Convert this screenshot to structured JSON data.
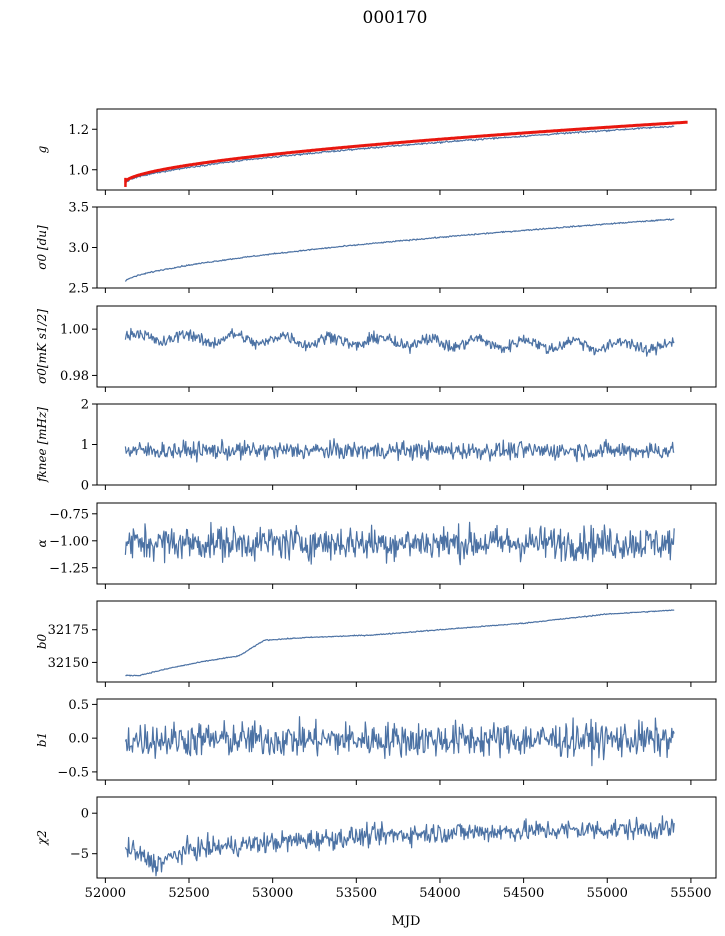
{
  "title": "000170",
  "xlabel": "MJD",
  "colors": {
    "series": "#4c72a4",
    "fit": "#e8170f",
    "axis": "#000000"
  },
  "chart_data": [
    {
      "type": "line",
      "id": "g",
      "ylabel": "g",
      "xlim": [
        51950,
        55650
      ],
      "ylim": [
        0.9,
        1.3
      ],
      "yticks": [
        1.0,
        1.2
      ],
      "yticklabels": [
        "1.0",
        "1.2"
      ],
      "series": [
        {
          "shape": "curve",
          "x0": 52120,
          "x1": 55400,
          "y0": 0.935,
          "y1": 1.215,
          "power": 0.6,
          "noise": 0.002
        },
        {
          "shape": "curve",
          "style": "fit",
          "x0": 52120,
          "x1": 55480,
          "y0": 0.94,
          "y1": 1.235,
          "power": 0.58,
          "noise": 0
        }
      ]
    },
    {
      "type": "line",
      "id": "sigma0_du",
      "ylabel": "σ0 [du]",
      "xlim": [
        51950,
        55650
      ],
      "ylim": [
        2.5,
        3.5
      ],
      "yticks": [
        2.5,
        3.0,
        3.5
      ],
      "yticklabels": [
        "2.5",
        "3.0",
        "3.5"
      ],
      "series": [
        {
          "shape": "curve",
          "x0": 52120,
          "x1": 55400,
          "y0": 2.58,
          "y1": 3.35,
          "power": 0.62,
          "noise": 0.004
        }
      ]
    },
    {
      "type": "line",
      "id": "sigma0_mk",
      "ylabel": "σ0[mK s1/2]",
      "xlim": [
        51950,
        55650
      ],
      "ylim": [
        0.975,
        1.01
      ],
      "yticks": [
        0.98,
        1.0
      ],
      "yticklabels": [
        "0.98",
        "1.00"
      ],
      "series": [
        {
          "shape": "wave",
          "x0": 52120,
          "x1": 55400,
          "y0": 0.9965,
          "y1": 0.9925,
          "amp": 0.002,
          "noise": 0.0013,
          "period": 290
        }
      ]
    },
    {
      "type": "line",
      "id": "fknee",
      "ylabel": "fknee [mHz]",
      "xlim": [
        51950,
        55650
      ],
      "ylim": [
        0,
        2
      ],
      "yticks": [
        0,
        1,
        2
      ],
      "yticklabels": [
        "0",
        "1",
        "2"
      ],
      "series": [
        {
          "shape": "noise",
          "x0": 52120,
          "x1": 55400,
          "mean": 0.85,
          "noise": 0.11,
          "min": 0.55,
          "max": 1.25
        }
      ]
    },
    {
      "type": "line",
      "id": "alpha",
      "ylabel": "α",
      "xlim": [
        51950,
        55650
      ],
      "ylim": [
        -1.4,
        -0.65
      ],
      "yticks": [
        -1.25,
        -1.0,
        -0.75
      ],
      "yticklabels": [
        "−1.25",
        "−1.00",
        "−0.75"
      ],
      "series": [
        {
          "shape": "noise",
          "x0": 52120,
          "x1": 55400,
          "mean": -1.02,
          "noise": 0.08,
          "min": -1.32,
          "max": -0.74
        }
      ]
    },
    {
      "type": "line",
      "id": "b0",
      "ylabel": "b0",
      "xlim": [
        51950,
        55650
      ],
      "ylim": [
        32135,
        32197
      ],
      "yticks": [
        32150,
        32175
      ],
      "yticklabels": [
        "32150",
        "32175"
      ],
      "series": [
        {
          "shape": "points",
          "x": [
            52120,
            52200,
            52400,
            52600,
            52800,
            52950,
            53200,
            53600,
            54000,
            54500,
            55000,
            55400
          ],
          "y": [
            32140,
            32140,
            32146,
            32151,
            32155,
            32167,
            32169,
            32171,
            32175,
            32180,
            32187,
            32190
          ],
          "noise": 0.2
        }
      ]
    },
    {
      "type": "line",
      "id": "b1",
      "ylabel": "b1",
      "xlim": [
        51950,
        55650
      ],
      "ylim": [
        -0.62,
        0.58
      ],
      "yticks": [
        -0.5,
        0.0,
        0.5
      ],
      "yticklabels": [
        "−0.5",
        "0.0",
        "0.5"
      ],
      "series": [
        {
          "shape": "noise",
          "x0": 52120,
          "x1": 55400,
          "mean": -0.02,
          "noise": 0.13,
          "min": -0.58,
          "max": 0.52
        }
      ]
    },
    {
      "type": "line",
      "id": "chi2",
      "ylabel": "χ2",
      "xlim": [
        51950,
        55650
      ],
      "ylim": [
        -8,
        2
      ],
      "yticks": [
        -5,
        0
      ],
      "yticklabels": [
        "−5",
        "0"
      ],
      "xticks": [
        52000,
        52500,
        53000,
        53500,
        54000,
        54500,
        55000,
        55500
      ],
      "xticklabels": [
        "52000",
        "52500",
        "53000",
        "53500",
        "54000",
        "54500",
        "55000",
        "55500"
      ],
      "series": [
        {
          "shape": "points",
          "x": [
            52120,
            52300,
            52500,
            53000,
            53500,
            54000,
            54500,
            55000,
            55400
          ],
          "y": [
            -4.2,
            -6.3,
            -4.5,
            -3.6,
            -2.9,
            -2.4,
            -2.2,
            -2.0,
            -1.9
          ],
          "noise": 0.65
        }
      ]
    }
  ]
}
